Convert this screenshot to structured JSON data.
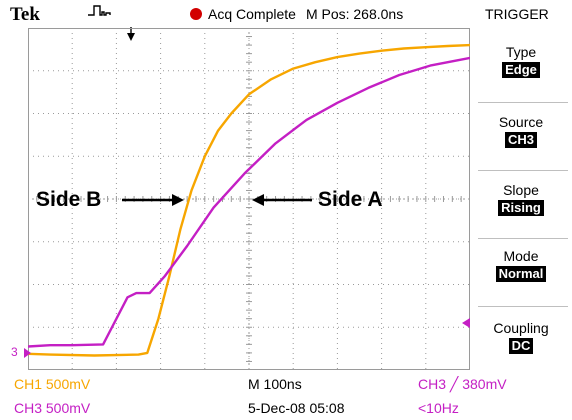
{
  "top": {
    "brand": "Tek",
    "acq_status": "Acq Complete",
    "m_pos": "M Pos: 268.0ns",
    "panel_title": "TRIGGER"
  },
  "menu": [
    {
      "label": "Type",
      "value": "Edge"
    },
    {
      "label": "Source",
      "value": "CH3"
    },
    {
      "label": "Slope",
      "value": "Rising"
    },
    {
      "label": "Mode",
      "value": "Normal"
    },
    {
      "label": "Coupling",
      "value": "DC"
    }
  ],
  "annotations": {
    "side_b": "Side B",
    "side_a": "Side A"
  },
  "channel_marker": "3",
  "status": {
    "ch1": "CH1  500mV",
    "ch3": "CH3  500mV",
    "timebase": "M 100ns",
    "date": "5-Dec-08 05:08",
    "trigger_level": "CH3  ╱  380mV",
    "trigger_freq": "<10Hz"
  },
  "colors": {
    "ch1_trace": "#f7a600",
    "ch3_trace": "#c41fc4",
    "grid": "#9a9a9a",
    "acq_indicator": "#d20000"
  },
  "chart_data": {
    "type": "line",
    "grid": {
      "x_divisions": 10,
      "y_divisions": 8
    },
    "x_unit": "div",
    "y_unit": "div",
    "series": [
      {
        "channel": "CH1",
        "x": [
          0,
          0.5,
          1.5,
          2.5,
          2.7,
          2.95,
          3.2,
          3.45,
          3.7,
          4.0,
          4.3,
          4.6,
          5.0,
          5.5,
          6.0,
          6.5,
          7.0,
          7.5,
          8.0,
          8.5,
          9.0,
          9.5,
          10.0
        ],
        "y": [
          0.38,
          0.36,
          0.34,
          0.36,
          0.4,
          1.2,
          2.2,
          3.3,
          4.2,
          5.0,
          5.6,
          6.0,
          6.45,
          6.8,
          7.05,
          7.2,
          7.32,
          7.4,
          7.47,
          7.52,
          7.55,
          7.58,
          7.6
        ]
      },
      {
        "channel": "CH3",
        "x": [
          0,
          0.5,
          1.0,
          1.7,
          1.95,
          2.25,
          2.45,
          2.75,
          3.1,
          3.6,
          4.2,
          4.9,
          5.6,
          6.3,
          7.0,
          7.7,
          8.4,
          9.1,
          9.6,
          10.0
        ],
        "y": [
          0.55,
          0.58,
          0.58,
          0.6,
          1.1,
          1.7,
          1.8,
          1.8,
          2.2,
          2.9,
          3.8,
          4.6,
          5.3,
          5.85,
          6.25,
          6.6,
          6.9,
          7.12,
          7.22,
          7.3
        ]
      }
    ]
  }
}
